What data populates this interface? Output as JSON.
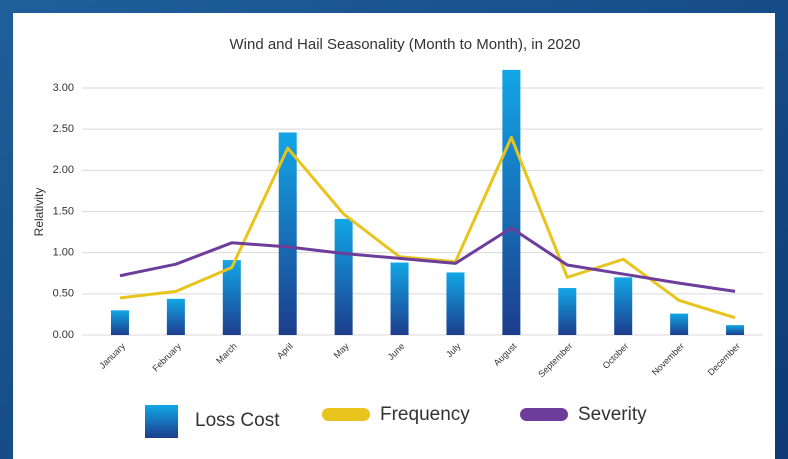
{
  "chart_data": {
    "type": "bar_line",
    "title": "Wind and Hail Seasonality (Month to Month), in 2020",
    "y_label": "Relativity",
    "categories": [
      "January",
      "February",
      "March",
      "April",
      "May",
      "June",
      "July",
      "August",
      "September",
      "October",
      "November",
      "December"
    ],
    "series": [
      {
        "name": "Loss Cost",
        "type": "bar",
        "color": "#12a6e6",
        "values": [
          0.3,
          0.44,
          0.91,
          2.46,
          1.41,
          0.88,
          0.76,
          3.22,
          0.57,
          0.7,
          0.26,
          0.12
        ]
      },
      {
        "name": "Frequency",
        "type": "line",
        "color": "#e8c41c",
        "values": [
          0.45,
          0.53,
          0.82,
          2.27,
          1.47,
          0.95,
          0.89,
          2.4,
          0.7,
          0.92,
          0.42,
          0.21
        ]
      },
      {
        "name": "Severity",
        "type": "line",
        "color": "#6c3d9b",
        "values": [
          0.72,
          0.86,
          1.12,
          1.07,
          0.99,
          0.93,
          0.87,
          1.3,
          0.85,
          0.74,
          0.63,
          0.53
        ]
      }
    ],
    "ylim": [
      0,
      3.25
    ],
    "yticks": [
      {
        "value": 0,
        "label": "0.00"
      },
      {
        "value": 0.5,
        "label": "0.50"
      },
      {
        "value": 1,
        "label": "1.00"
      },
      {
        "value": 1.5,
        "label": "1.50"
      },
      {
        "value": 2,
        "label": "2.00"
      },
      {
        "value": 2.5,
        "label": "2.50"
      },
      {
        "value": 3,
        "label": "3.00"
      }
    ],
    "grid": true
  }
}
